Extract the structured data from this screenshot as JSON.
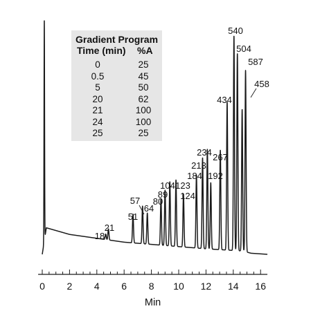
{
  "chart_data": {
    "type": "line",
    "xlabel": "Min",
    "ylabel": "",
    "xlim": [
      -0.3,
      16.5
    ],
    "x_ticks": [
      "0",
      "2",
      "4",
      "6",
      "8",
      "10",
      "12",
      "14",
      "16"
    ],
    "grid": false,
    "legend": "none",
    "line_color": "#1a1a1a",
    "baseline": [
      {
        "t": 0.3,
        "y": 0.12
      },
      {
        "t": 2.0,
        "y": 0.09
      },
      {
        "t": 6.0,
        "y": 0.055
      },
      {
        "t": 9.0,
        "y": 0.04
      },
      {
        "t": 12.0,
        "y": 0.025
      },
      {
        "t": 14.7,
        "y": 0.015
      },
      {
        "t": 15.3,
        "y": 0.005
      },
      {
        "t": 16.5,
        "y": 0.0
      }
    ],
    "peaks": [
      {
        "t": 0.15,
        "h": 1.0,
        "label": ""
      },
      {
        "t": 4.65,
        "h": 0.025,
        "label": "18"
      },
      {
        "t": 4.85,
        "h": 0.05,
        "label": "21"
      },
      {
        "t": 6.65,
        "h": 0.13,
        "label": "51"
      },
      {
        "t": 7.35,
        "h": 0.17,
        "label": "57"
      },
      {
        "t": 7.7,
        "h": 0.14,
        "label": "64"
      },
      {
        "t": 8.7,
        "h": 0.21,
        "label": "80"
      },
      {
        "t": 9.0,
        "h": 0.25,
        "label": "89"
      },
      {
        "t": 9.35,
        "h": 0.29,
        "label": "104"
      },
      {
        "t": 9.8,
        "h": 0.3,
        "label": "123"
      },
      {
        "t": 10.35,
        "h": 0.24,
        "label": "124"
      },
      {
        "t": 11.3,
        "h": 0.33,
        "label": "184"
      },
      {
        "t": 11.75,
        "h": 0.41,
        "label": "213"
      },
      {
        "t": 12.1,
        "h": 0.45,
        "label": "234"
      },
      {
        "t": 12.35,
        "h": 0.3,
        "label": "192"
      },
      {
        "t": 13.05,
        "h": 0.45,
        "label": "267"
      },
      {
        "t": 13.55,
        "h": 0.67,
        "label": "434"
      },
      {
        "t": 14.05,
        "h": 0.97,
        "label": "540"
      },
      {
        "t": 14.3,
        "h": 0.89,
        "label": "504"
      },
      {
        "t": 14.65,
        "h": 0.64,
        "label": "458"
      },
      {
        "t": 14.9,
        "h": 0.82,
        "label": "587"
      }
    ]
  },
  "gradient_table": {
    "title": "Gradient Program",
    "col_time": "Time (min)",
    "col_a": "%A",
    "rows": [
      {
        "time": "0",
        "a": "25"
      },
      {
        "time": "0.5",
        "a": "45"
      },
      {
        "time": "5",
        "a": "50"
      },
      {
        "time": "20",
        "a": "62"
      },
      {
        "time": "21",
        "a": "100"
      },
      {
        "time": "24",
        "a": "100"
      },
      {
        "time": "25",
        "a": "25"
      }
    ]
  }
}
